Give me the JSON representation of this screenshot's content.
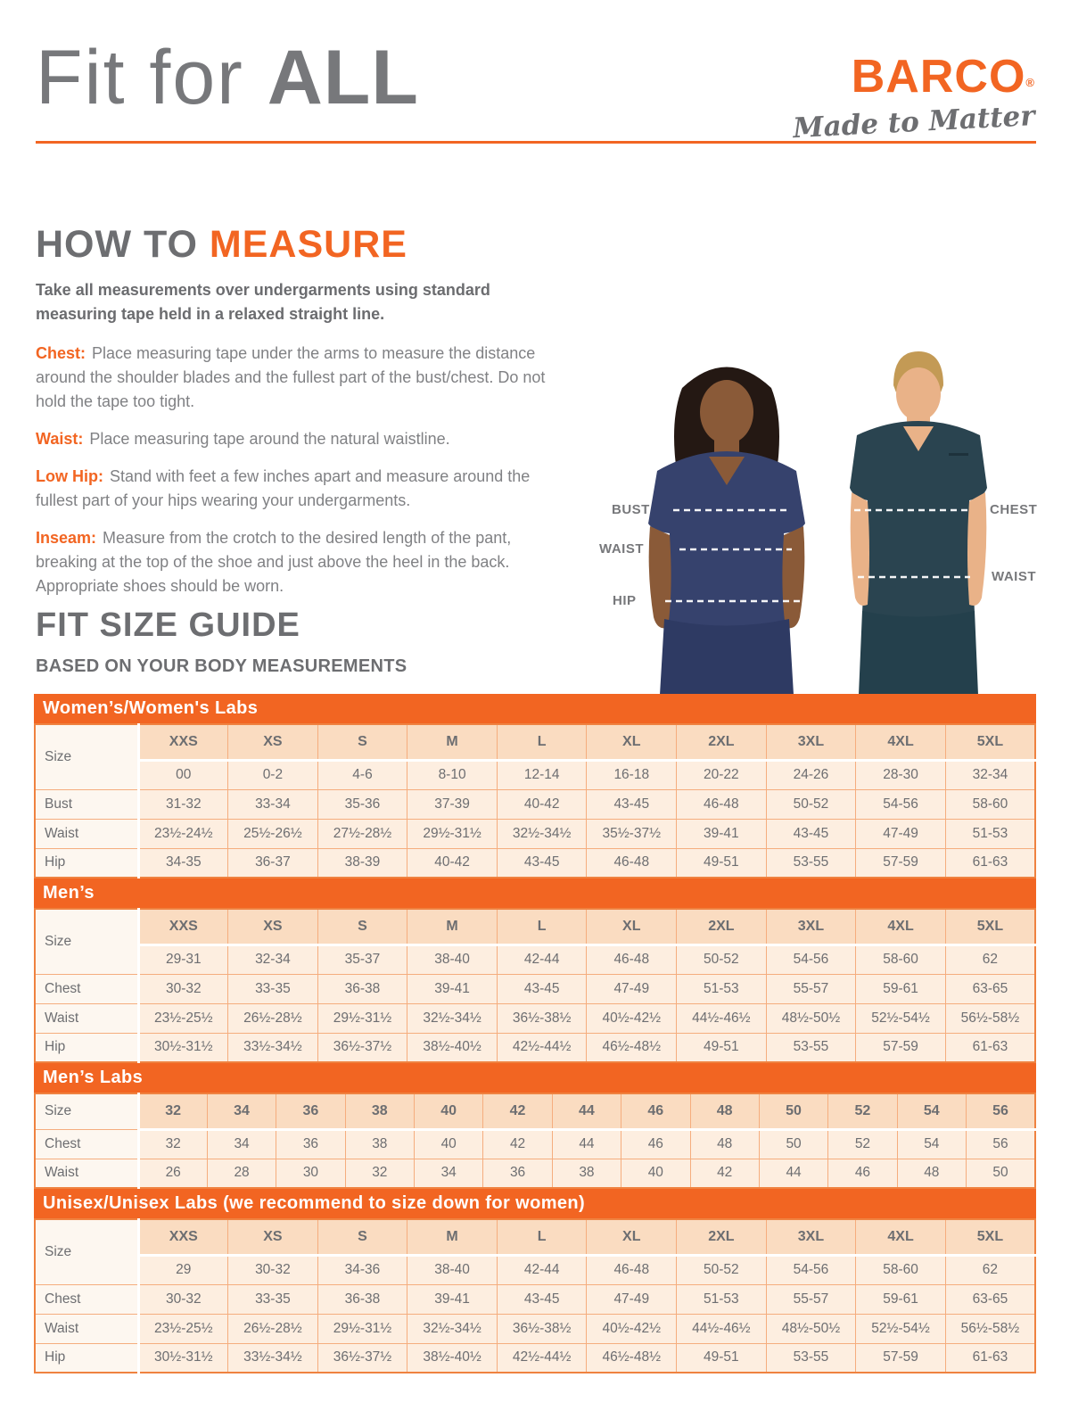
{
  "page": {
    "title_regular": "Fit for ",
    "title_bold": "ALL"
  },
  "brand": {
    "name": "BARCO",
    "registered": "®",
    "tagline": "Made to Matter"
  },
  "how_to_measure": {
    "heading_gray": "HOW TO ",
    "heading_orange": "MEASURE",
    "intro": "Take all measurements over undergarments using standard measuring tape held in a relaxed straight line.",
    "items": [
      {
        "label": "Chest:",
        "text": "Place measuring tape under the arms to measure the distance around the shoulder blades and the fullest part of the bust/chest. Do not hold the tape too tight."
      },
      {
        "label": "Waist:",
        "text": "Place measuring tape around the natural waistline."
      },
      {
        "label": "Low Hip:",
        "text": "Stand with feet a few inches apart and measure around the fullest part of your hips wearing your undergarments."
      },
      {
        "label": "Inseam:",
        "text": "Measure from the crotch to the desired length of the pant, breaking at the top of the shoe and just above the heel in the back. Appropriate shoes should be worn."
      }
    ]
  },
  "figure": {
    "left_labels": [
      "BUST",
      "WAIST",
      "HIP"
    ],
    "right_labels": [
      "CHEST",
      "WAIST"
    ]
  },
  "size_guide": {
    "heading": "FIT SIZE GUIDE",
    "subheading": "BASED ON YOUR BODY MEASUREMENTS",
    "tables": [
      {
        "title": "Women’s/Women's Labs",
        "size_label": "Size",
        "sizes": [
          "XXS",
          "XS",
          "S",
          "M",
          "L",
          "XL",
          "2XL",
          "3XL",
          "4XL",
          "5XL"
        ],
        "numeric": [
          "00",
          "0-2",
          "4-6",
          "8-10",
          "12-14",
          "16-18",
          "20-22",
          "24-26",
          "28-30",
          "32-34"
        ],
        "rows": [
          {
            "label": "Bust",
            "values": [
              "31-32",
              "33-34",
              "35-36",
              "37-39",
              "40-42",
              "43-45",
              "46-48",
              "50-52",
              "54-56",
              "58-60"
            ]
          },
          {
            "label": "Waist",
            "values": [
              "23½-24½",
              "25½-26½",
              "27½-28½",
              "29½-31½",
              "32½-34½",
              "35½-37½",
              "39-41",
              "43-45",
              "47-49",
              "51-53"
            ]
          },
          {
            "label": "Hip",
            "values": [
              "34-35",
              "36-37",
              "38-39",
              "40-42",
              "43-45",
              "46-48",
              "49-51",
              "53-55",
              "57-59",
              "61-63"
            ]
          }
        ]
      },
      {
        "title": "Men’s",
        "size_label": "Size",
        "sizes": [
          "XXS",
          "XS",
          "S",
          "M",
          "L",
          "XL",
          "2XL",
          "3XL",
          "4XL",
          "5XL"
        ],
        "numeric": [
          "29-31",
          "32-34",
          "35-37",
          "38-40",
          "42-44",
          "46-48",
          "50-52",
          "54-56",
          "58-60",
          "62"
        ],
        "rows": [
          {
            "label": "Chest",
            "values": [
              "30-32",
              "33-35",
              "36-38",
              "39-41",
              "43-45",
              "47-49",
              "51-53",
              "55-57",
              "59-61",
              "63-65"
            ]
          },
          {
            "label": "Waist",
            "values": [
              "23½-25½",
              "26½-28½",
              "29½-31½",
              "32½-34½",
              "36½-38½",
              "40½-42½",
              "44½-46½",
              "48½-50½",
              "52½-54½",
              "56½-58½"
            ]
          },
          {
            "label": "Hip",
            "values": [
              "30½-31½",
              "33½-34½",
              "36½-37½",
              "38½-40½",
              "42½-44½",
              "46½-48½",
              "49-51",
              "53-55",
              "57-59",
              "61-63"
            ]
          }
        ]
      },
      {
        "title": "Men’s Labs",
        "size_label": "Size",
        "sizes": [
          "32",
          "34",
          "36",
          "38",
          "40",
          "42",
          "44",
          "46",
          "48",
          "50",
          "52",
          "54",
          "56"
        ],
        "numeric": null,
        "rows": [
          {
            "label": "Chest",
            "values": [
              "32",
              "34",
              "36",
              "38",
              "40",
              "42",
              "44",
              "46",
              "48",
              "50",
              "52",
              "54",
              "56"
            ]
          },
          {
            "label": "Waist",
            "values": [
              "26",
              "28",
              "30",
              "32",
              "34",
              "36",
              "38",
              "40",
              "42",
              "44",
              "46",
              "48",
              "50"
            ]
          }
        ]
      },
      {
        "title": "Unisex/Unisex Labs (we recommend to size down for women)",
        "size_label": "Size",
        "sizes": [
          "XXS",
          "XS",
          "S",
          "M",
          "L",
          "XL",
          "2XL",
          "3XL",
          "4XL",
          "5XL"
        ],
        "numeric": [
          "29",
          "30-32",
          "34-36",
          "38-40",
          "42-44",
          "46-48",
          "50-52",
          "54-56",
          "58-60",
          "62"
        ],
        "rows": [
          {
            "label": "Chest",
            "values": [
              "30-32",
              "33-35",
              "36-38",
              "39-41",
              "43-45",
              "47-49",
              "51-53",
              "55-57",
              "59-61",
              "63-65"
            ]
          },
          {
            "label": "Waist",
            "values": [
              "23½-25½",
              "26½-28½",
              "29½-31½",
              "32½-34½",
              "36½-38½",
              "40½-42½",
              "44½-46½",
              "48½-50½",
              "52½-54½",
              "56½-58½"
            ]
          },
          {
            "label": "Hip",
            "values": [
              "30½-31½",
              "33½-34½",
              "36½-37½",
              "38½-40½",
              "42½-44½",
              "46½-48½",
              "49-51",
              "53-55",
              "57-59",
              "61-63"
            ]
          }
        ]
      }
    ]
  },
  "colors": {
    "accent_orange": "#f26522",
    "text_gray": "#6d6e71",
    "body_gray": "#808184",
    "table_header_peach": "#fadcc1",
    "table_cell_peach": "#fdeee0",
    "table_label_cream": "#fdf7f0",
    "woman_scrub_navy": "#36426d",
    "man_scrub_teal": "#2a4450"
  }
}
